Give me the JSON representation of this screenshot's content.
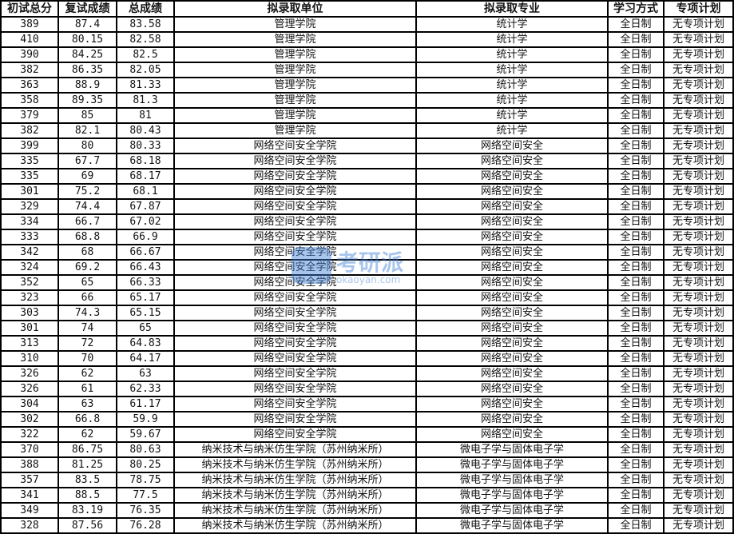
{
  "headers": [
    "初试总分",
    "复试成绩",
    "总成绩",
    "拟录取单位",
    "拟录取专业",
    "学习方式",
    "专项计划"
  ],
  "rows": [
    [
      "389",
      "87.4",
      "83.58",
      "管理学院",
      "统计学",
      "全日制",
      "无专项计划"
    ],
    [
      "410",
      "80.15",
      "82.58",
      "管理学院",
      "统计学",
      "全日制",
      "无专项计划"
    ],
    [
      "390",
      "84.25",
      "82.5",
      "管理学院",
      "统计学",
      "全日制",
      "无专项计划"
    ],
    [
      "382",
      "86.35",
      "82.05",
      "管理学院",
      "统计学",
      "全日制",
      "无专项计划"
    ],
    [
      "363",
      "88.9",
      "81.33",
      "管理学院",
      "统计学",
      "全日制",
      "无专项计划"
    ],
    [
      "358",
      "89.35",
      "81.3",
      "管理学院",
      "统计学",
      "全日制",
      "无专项计划"
    ],
    [
      "379",
      "85",
      "81",
      "管理学院",
      "统计学",
      "全日制",
      "无专项计划"
    ],
    [
      "382",
      "82.1",
      "80.43",
      "管理学院",
      "统计学",
      "全日制",
      "无专项计划"
    ],
    [
      "399",
      "80",
      "80.33",
      "网络空间安全学院",
      "网络空间安全",
      "全日制",
      "无专项计划"
    ],
    [
      "335",
      "67.7",
      "68.18",
      "网络空间安全学院",
      "网络空间安全",
      "全日制",
      "无专项计划"
    ],
    [
      "335",
      "69",
      "68.17",
      "网络空间安全学院",
      "网络空间安全",
      "全日制",
      "无专项计划"
    ],
    [
      "301",
      "75.2",
      "68.1",
      "网络空间安全学院",
      "网络空间安全",
      "全日制",
      "无专项计划"
    ],
    [
      "329",
      "74.4",
      "67.87",
      "网络空间安全学院",
      "网络空间安全",
      "全日制",
      "无专项计划"
    ],
    [
      "334",
      "66.7",
      "67.02",
      "网络空间安全学院",
      "网络空间安全",
      "全日制",
      "无专项计划"
    ],
    [
      "333",
      "68.8",
      "66.9",
      "网络空间安全学院",
      "网络空间安全",
      "全日制",
      "无专项计划"
    ],
    [
      "342",
      "68",
      "66.67",
      "网络空间安全学院",
      "网络空间安全",
      "全日制",
      "无专项计划"
    ],
    [
      "324",
      "69.2",
      "66.43",
      "网络空间安全学院",
      "网络空间安全",
      "全日制",
      "无专项计划"
    ],
    [
      "352",
      "65",
      "66.33",
      "网络空间安全学院",
      "网络空间安全",
      "全日制",
      "无专项计划"
    ],
    [
      "323",
      "66",
      "65.17",
      "网络空间安全学院",
      "网络空间安全",
      "全日制",
      "无专项计划"
    ],
    [
      "303",
      "74.3",
      "65.15",
      "网络空间安全学院",
      "网络空间安全",
      "全日制",
      "无专项计划"
    ],
    [
      "301",
      "74",
      "65",
      "网络空间安全学院",
      "网络空间安全",
      "全日制",
      "无专项计划"
    ],
    [
      "313",
      "72",
      "64.83",
      "网络空间安全学院",
      "网络空间安全",
      "全日制",
      "无专项计划"
    ],
    [
      "310",
      "70",
      "64.17",
      "网络空间安全学院",
      "网络空间安全",
      "全日制",
      "无专项计划"
    ],
    [
      "326",
      "62",
      "63",
      "网络空间安全学院",
      "网络空间安全",
      "全日制",
      "无专项计划"
    ],
    [
      "326",
      "61",
      "62.33",
      "网络空间安全学院",
      "网络空间安全",
      "全日制",
      "无专项计划"
    ],
    [
      "304",
      "63",
      "61.17",
      "网络空间安全学院",
      "网络空间安全",
      "全日制",
      "无专项计划"
    ],
    [
      "302",
      "66.8",
      "59.9",
      "网络空间安全学院",
      "网络空间安全",
      "全日制",
      "无专项计划"
    ],
    [
      "322",
      "62",
      "59.67",
      "网络空间安全学院",
      "网络空间安全",
      "全日制",
      "无专项计划"
    ],
    [
      "370",
      "86.75",
      "80.63",
      "纳米技术与纳米仿生学院（苏州纳米所）",
      "微电子学与固体电子学",
      "全日制",
      "无专项计划"
    ],
    [
      "388",
      "81.25",
      "80.25",
      "纳米技术与纳米仿生学院（苏州纳米所）",
      "微电子学与固体电子学",
      "全日制",
      "无专项计划"
    ],
    [
      "357",
      "83.5",
      "78.75",
      "纳米技术与纳米仿生学院（苏州纳米所）",
      "微电子学与固体电子学",
      "全日制",
      "无专项计划"
    ],
    [
      "341",
      "88.5",
      "77.5",
      "纳米技术与纳米仿生学院（苏州纳米所）",
      "微电子学与固体电子学",
      "全日制",
      "无专项计划"
    ],
    [
      "349",
      "83.19",
      "76.35",
      "纳米技术与纳米仿生学院（苏州纳米所）",
      "微电子学与固体电子学",
      "全日制",
      "无专项计划"
    ],
    [
      "328",
      "87.56",
      "76.28",
      "纳米技术与纳米仿生学院（苏州纳米所）",
      "微电子学与固体电子学",
      "全日制",
      "无专项计划"
    ]
  ],
  "watermark": {
    "name": "考研派",
    "url": "okaoyan.com",
    "color": "#3f7fd6"
  }
}
